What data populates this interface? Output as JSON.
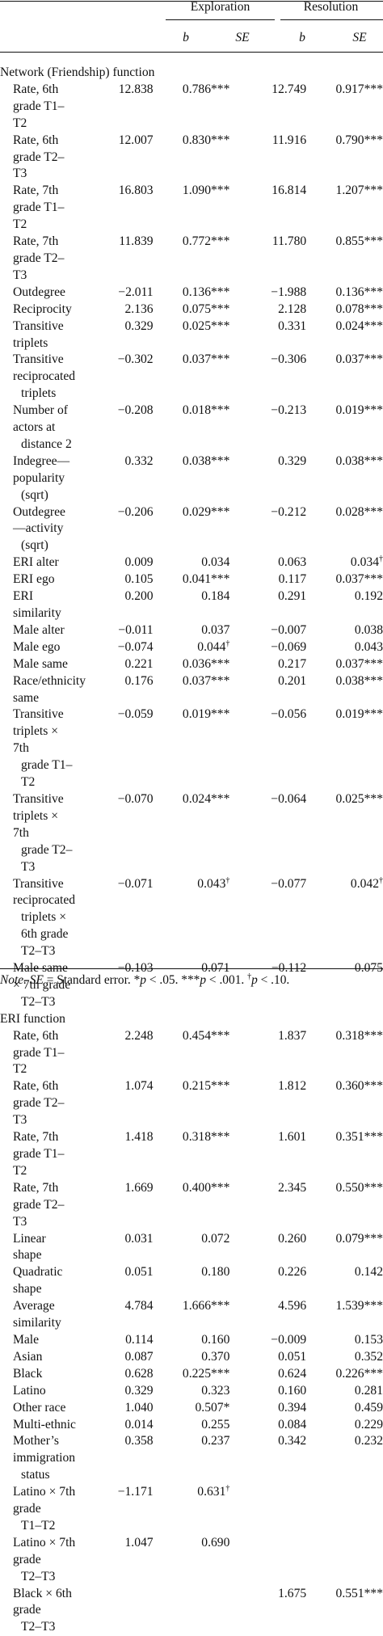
{
  "header": {
    "group1": "Exploration",
    "group2": "Resolution",
    "col_b": "b",
    "col_se": "SE"
  },
  "sections": [
    {
      "title": "Network (Friendship) function",
      "rows": [
        {
          "label": "Rate, 6th grade T1–T2",
          "b1": "12.838",
          "se1": "0.786***",
          "b2": "12.749",
          "se2": "0.917***"
        },
        {
          "label": "Rate, 6th grade T2–T3",
          "b1": "12.007",
          "se1": "0.830***",
          "b2": "11.916",
          "se2": "0.790***"
        },
        {
          "label": "Rate, 7th grade T1–T2",
          "b1": "16.803",
          "se1": "1.090***",
          "b2": "16.814",
          "se2": "1.207***"
        },
        {
          "label": "Rate, 7th grade T2–T3",
          "b1": "11.839",
          "se1": "0.772***",
          "b2": "11.780",
          "se2": "0.855***"
        },
        {
          "label": "Outdegree",
          "b1": "−2.011",
          "se1": "0.136***",
          "b2": "−1.988",
          "se2": "0.136***"
        },
        {
          "label": "Reciprocity",
          "b1": "2.136",
          "se1": "0.075***",
          "b2": "2.128",
          "se2": "0.078***"
        },
        {
          "label": "Transitive triplets",
          "b1": "0.329",
          "se1": "0.025***",
          "b2": "0.331",
          "se2": "0.024***"
        },
        {
          "label": "Transitive reciprocated",
          "cont": "triplets",
          "b1": "−0.302",
          "se1": "0.037***",
          "b2": "−0.306",
          "se2": "0.037***"
        },
        {
          "label": "Number of actors at",
          "cont": "distance 2",
          "b1": "−0.208",
          "se1": "0.018***",
          "b2": "−0.213",
          "se2": "0.019***"
        },
        {
          "label": "Indegree—popularity",
          "cont": "(sqrt)",
          "b1": "0.332",
          "se1": "0.038***",
          "b2": "0.329",
          "se2": "0.038***"
        },
        {
          "label": "Outdegree—activity",
          "cont": "(sqrt)",
          "b1": "−0.206",
          "se1": "0.029***",
          "b2": "−0.212",
          "se2": "0.028***"
        },
        {
          "label": "ERI alter",
          "b1": "0.009",
          "se1": "0.034",
          "b2": "0.063",
          "se2": "0.034†"
        },
        {
          "label": "ERI ego",
          "b1": "0.105",
          "se1": "0.041***",
          "b2": "0.117",
          "se2": "0.037***"
        },
        {
          "label": "ERI similarity",
          "b1": "0.200",
          "se1": "0.184",
          "b2": "0.291",
          "se2": "0.192"
        },
        {
          "label": "Male alter",
          "b1": "−0.011",
          "se1": "0.037",
          "b2": "−0.007",
          "se2": "0.038"
        },
        {
          "label": "Male ego",
          "b1": "−0.074",
          "se1": "0.044†",
          "b2": "−0.069",
          "se2": "0.043"
        },
        {
          "label": "Male same",
          "b1": "0.221",
          "se1": "0.036***",
          "b2": "0.217",
          "se2": "0.037***"
        },
        {
          "label": "Race/ethnicity same",
          "b1": "0.176",
          "se1": "0.037***",
          "b2": "0.201",
          "se2": "0.038***"
        },
        {
          "label": "Transitive triplets × 7th",
          "cont": "grade T1–T2",
          "b1": "−0.059",
          "se1": "0.019***",
          "b2": "−0.056",
          "se2": "0.019***"
        },
        {
          "label": "Transitive triplets × 7th",
          "cont": "grade T2–T3",
          "b1": "−0.070",
          "se1": "0.024***",
          "b2": "−0.064",
          "se2": "0.025***"
        },
        {
          "label": "Transitive reciprocated",
          "cont": "triplets × 6th grade",
          "cont2": "T2–T3",
          "b1": "−0.071",
          "se1": "0.043†",
          "b2": "−0.077",
          "se2": "0.042†"
        },
        {
          "label": "Male same × 7th grade",
          "cont": "T2–T3",
          "b1": "−0.103",
          "se1": "0.071",
          "b2": "−0.112",
          "se2": "0.075"
        }
      ]
    },
    {
      "title": "ERI function",
      "rows": [
        {
          "label": "Rate, 6th grade T1–T2",
          "b1": "2.248",
          "se1": "0.454***",
          "b2": "1.837",
          "se2": "0.318***"
        },
        {
          "label": "Rate, 6th grade T2–T3",
          "b1": "1.074",
          "se1": "0.215***",
          "b2": "1.812",
          "se2": "0.360***"
        },
        {
          "label": "Rate, 7th grade T1–T2",
          "b1": "1.418",
          "se1": "0.318***",
          "b2": "1.601",
          "se2": "0.351***"
        },
        {
          "label": "Rate, 7th grade T2–T3",
          "b1": "1.669",
          "se1": "0.400***",
          "b2": "2.345",
          "se2": "0.550***"
        },
        {
          "label": "Linear shape",
          "b1": "0.031",
          "se1": "0.072",
          "b2": "0.260",
          "se2": "0.079***"
        },
        {
          "label": "Quadratic shape",
          "b1": "0.051",
          "se1": "0.180",
          "b2": "0.226",
          "se2": "0.142"
        },
        {
          "label": "Average similarity",
          "b1": "4.784",
          "se1": "1.666***",
          "b2": "4.596",
          "se2": "1.539***"
        },
        {
          "label": "Male",
          "b1": "0.114",
          "se1": "0.160",
          "b2": "−0.009",
          "se2": "0.153"
        },
        {
          "label": "Asian",
          "b1": "0.087",
          "se1": "0.370",
          "b2": "0.051",
          "se2": "0.352"
        },
        {
          "label": "Black",
          "b1": "0.628",
          "se1": "0.225***",
          "b2": "0.624",
          "se2": "0.226***"
        },
        {
          "label": "Latino",
          "b1": "0.329",
          "se1": "0.323",
          "b2": "0.160",
          "se2": "0.281"
        },
        {
          "label": "Other race",
          "b1": "1.040",
          "se1": "0.507*",
          "b2": "0.394",
          "se2": "0.459"
        },
        {
          "label": "Multi-ethnic",
          "b1": "0.014",
          "se1": "0.255",
          "b2": "0.084",
          "se2": "0.229"
        },
        {
          "label": "Mother’s immigration",
          "cont": "status",
          "b1": "0.358",
          "se1": "0.237",
          "b2": "0.342",
          "se2": "0.232"
        },
        {
          "label": "Latino × 7th grade",
          "cont": "T1–T2",
          "b1": "−1.171",
          "se1": "0.631†",
          "b2": "",
          "se2": ""
        },
        {
          "label": "Latino × 7th grade",
          "cont": "T2–T3",
          "b1": "1.047",
          "se1": "0.690",
          "b2": "",
          "se2": ""
        },
        {
          "label": "Black × 6th grade",
          "cont": "T2–T3",
          "b1": "",
          "se1": "",
          "b2": "1.675",
          "se2": "0.551***"
        }
      ]
    }
  ],
  "note": {
    "prefix": "Note.",
    "text": "SE = Standard error. *p < .05. ***p < .001. †p < .10."
  }
}
